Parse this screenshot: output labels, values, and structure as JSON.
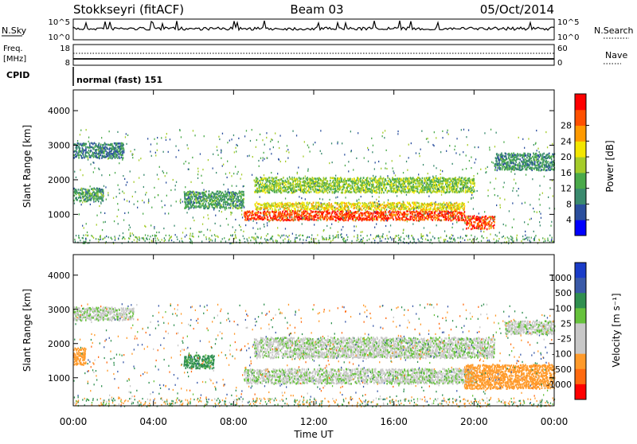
{
  "header": {
    "station": "Stokkseyri (fitACF)",
    "beam": "Beam 03",
    "date": "05/Oct/2014"
  },
  "side_labels": {
    "nsky": "N.Sky",
    "nsearch": "N.Search",
    "freq_line1": "Freq.",
    "freq_line2": "[MHz]",
    "nave": "Nave",
    "cpid": "CPID"
  },
  "mini_axes": {
    "nsky_ticks": [
      "10^5",
      "10^0"
    ],
    "nsearch_ticks": [
      "10^5",
      "10^0"
    ],
    "freq_ticks": [
      "18",
      "8"
    ],
    "nave_ticks": [
      "60",
      "0"
    ]
  },
  "cpid_text": "normal (fast) 151",
  "colors": {
    "power_scale": [
      "#0000ff",
      "#2b4f9e",
      "#3a8a6e",
      "#4aaa4a",
      "#a5cc2a",
      "#f3e600",
      "#ff9a00",
      "#ff5000",
      "#ff0000"
    ],
    "velocity_scale": [
      "#1a3cc8",
      "#3a5aa8",
      "#2f8f4f",
      "#66c23c",
      "#c8c8c8",
      "#c8c8c8",
      "#ff9a2a",
      "#ff6a10",
      "#ff0000"
    ],
    "grey_scatter": "#c8c8c8"
  },
  "chart_data": [
    {
      "type": "heatmap",
      "name": "power",
      "ylabel": "Slant Range [km]",
      "xlabel": "",
      "yticks": [
        "1000",
        "2000",
        "3000",
        "4000"
      ],
      "ylim": [
        180,
        4600
      ],
      "colorbar": {
        "label": "Power [dB]",
        "ticks": [
          "4",
          "8",
          "12",
          "16",
          "20",
          "24",
          "28"
        ],
        "range": [
          0,
          30
        ]
      },
      "bands": [
        {
          "t_start": 0.0,
          "t_end": 2.5,
          "r_start": 2650,
          "r_end": 3100,
          "level": 8
        },
        {
          "t_start": 0.0,
          "t_end": 1.5,
          "r_start": 1400,
          "r_end": 1800,
          "level": 10
        },
        {
          "t_start": 5.5,
          "t_end": 8.5,
          "r_start": 1200,
          "r_end": 1700,
          "level": 10
        },
        {
          "t_start": 8.5,
          "t_end": 19.5,
          "r_start": 850,
          "r_end": 1150,
          "level": 26
        },
        {
          "t_start": 9.0,
          "t_end": 19.5,
          "r_start": 1150,
          "r_end": 1350,
          "level": 18
        },
        {
          "t_start": 9.0,
          "t_end": 20.0,
          "r_start": 1650,
          "r_end": 2100,
          "level": 14
        },
        {
          "t_start": 19.5,
          "t_end": 21.0,
          "r_start": 600,
          "r_end": 1000,
          "level": 26
        },
        {
          "t_start": 21.0,
          "t_end": 24.0,
          "r_start": 2300,
          "r_end": 2800,
          "level": 9
        }
      ]
    },
    {
      "type": "heatmap",
      "name": "velocity",
      "ylabel": "Slant Range [km]",
      "xlabel": "Time UT",
      "xticks": [
        "00:00",
        "04:00",
        "08:00",
        "12:00",
        "16:00",
        "20:00",
        "00:00"
      ],
      "xlim": [
        0,
        24
      ],
      "yticks": [
        "1000",
        "2000",
        "3000",
        "4000"
      ],
      "ylim": [
        180,
        4600
      ],
      "colorbar": {
        "label": "Velocity [m s⁻¹]",
        "ticks": [
          "1000",
          "500",
          "100",
          "25",
          "-25",
          "-100",
          "-500",
          "-1000"
        ],
        "range": [
          -1200,
          1200
        ]
      },
      "bands": [
        {
          "t_start": 0.0,
          "t_end": 3.0,
          "r_start": 2700,
          "r_end": 3100,
          "level": 0
        },
        {
          "t_start": 0.0,
          "t_end": 0.6,
          "r_start": 1400,
          "r_end": 1900,
          "level": -300
        },
        {
          "t_start": 5.5,
          "t_end": 7.0,
          "r_start": 1300,
          "r_end": 1700,
          "level": 150
        },
        {
          "t_start": 8.5,
          "t_end": 20.0,
          "r_start": 850,
          "r_end": 1300,
          "level": 0
        },
        {
          "t_start": 9.0,
          "t_end": 21.0,
          "r_start": 1600,
          "r_end": 2200,
          "level": 0
        },
        {
          "t_start": 19.5,
          "t_end": 24.0,
          "r_start": 700,
          "r_end": 1400,
          "level": -300
        },
        {
          "t_start": 21.5,
          "t_end": 24.0,
          "r_start": 2300,
          "r_end": 2700,
          "level": 0
        }
      ]
    }
  ]
}
